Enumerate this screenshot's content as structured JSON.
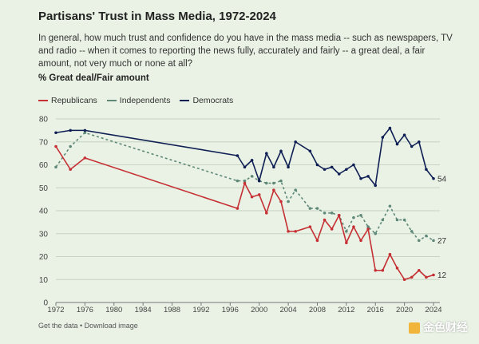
{
  "title": "Partisans' Trust in Mass Media, 1972-2024",
  "subtitle": "In general, how much trust and confidence do you have in the mass media -- such as newspapers, TV and radio -- when it comes to reporting the news fully, accurately and fairly -- a great deal, a fair amount, not very much or none at all?",
  "ylabel_text": "% Great deal/Fair amount",
  "legend": {
    "rep": "Republicans",
    "ind": "Independents",
    "dem": "Democrats"
  },
  "footer": "Get the data • Download image",
  "watermark": "金色财经",
  "colors": {
    "rep": "#c62f34",
    "ind": "#5f8878",
    "dem": "#0f1f55",
    "grid": "#c8d3c4"
  },
  "chart_data": {
    "type": "line",
    "xlim": [
      1972,
      2024
    ],
    "ylim": [
      0,
      80
    ],
    "xticks": [
      1972,
      1976,
      1980,
      1984,
      1988,
      1992,
      1996,
      2000,
      2004,
      2008,
      2012,
      2016,
      2020,
      2024
    ],
    "yticks": [
      0,
      10,
      20,
      30,
      40,
      50,
      60,
      70,
      80
    ],
    "grid": true,
    "legend_position": "top-left",
    "series": [
      {
        "name": "Democrats",
        "key": "dem",
        "x": [
          1972,
          1974,
          1976,
          1997,
          1998,
          1999,
          2000,
          2001,
          2002,
          2003,
          2004,
          2005,
          2007,
          2008,
          2009,
          2010,
          2011,
          2012,
          2013,
          2014,
          2015,
          2016,
          2017,
          2018,
          2019,
          2020,
          2021,
          2022,
          2023,
          2024
        ],
        "y": [
          74,
          75,
          75,
          64,
          59,
          62,
          53,
          65,
          59,
          66,
          59,
          70,
          66,
          60,
          58,
          59,
          56,
          58,
          60,
          54,
          55,
          51,
          72,
          76,
          69,
          73,
          68,
          70,
          58,
          54
        ],
        "end_label": "54"
      },
      {
        "name": "Independents",
        "key": "ind",
        "x": [
          1972,
          1974,
          1976,
          1997,
          1998,
          1999,
          2000,
          2001,
          2002,
          2003,
          2004,
          2005,
          2007,
          2008,
          2009,
          2010,
          2011,
          2012,
          2013,
          2014,
          2015,
          2016,
          2017,
          2018,
          2019,
          2020,
          2021,
          2022,
          2023,
          2024
        ],
        "y": [
          59,
          68,
          74,
          53,
          53,
          55,
          53,
          52,
          52,
          53,
          44,
          49,
          41,
          41,
          39,
          39,
          38,
          31,
          37,
          38,
          33,
          30,
          36,
          42,
          36,
          36,
          31,
          27,
          29,
          27
        ],
        "end_label": "27"
      },
      {
        "name": "Republicans",
        "key": "rep",
        "x": [
          1972,
          1974,
          1976,
          1997,
          1998,
          1999,
          2000,
          2001,
          2002,
          2003,
          2004,
          2005,
          2007,
          2008,
          2009,
          2010,
          2011,
          2012,
          2013,
          2014,
          2015,
          2016,
          2017,
          2018,
          2019,
          2020,
          2021,
          2022,
          2023,
          2024
        ],
        "y": [
          68,
          58,
          63,
          41,
          52,
          46,
          47,
          39,
          49,
          44,
          31,
          31,
          33,
          27,
          36,
          32,
          38,
          26,
          33,
          27,
          32,
          14,
          14,
          21,
          15,
          10,
          11,
          14,
          11,
          12
        ],
        "end_label": "12"
      }
    ]
  }
}
